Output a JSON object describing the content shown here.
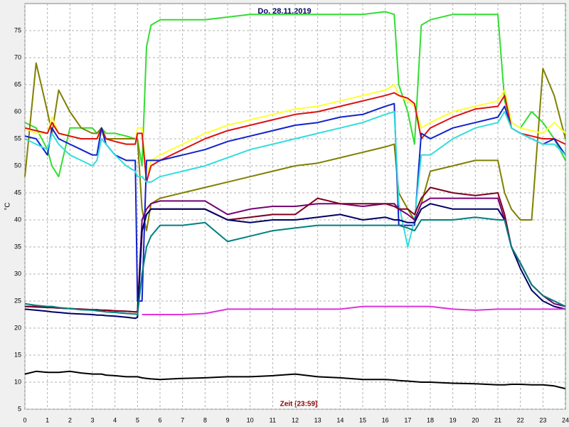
{
  "chart_data": {
    "type": "line",
    "title": "Do, 28.11.2019",
    "x_label": "Zeit [23:59]",
    "y_label": "°C",
    "x": [
      0,
      0.5,
      1,
      1.2,
      1.5,
      2,
      2.5,
      3,
      3.2,
      3.4,
      3.6,
      4,
      4.5,
      4.9,
      5.0,
      5.2,
      5.4,
      5.6,
      6,
      7,
      8,
      9,
      10,
      11,
      12,
      13,
      14,
      15,
      16,
      16.4,
      16.6,
      17,
      17.3,
      17.6,
      18,
      19,
      20,
      21,
      21.3,
      21.6,
      22,
      22.5,
      23,
      23.5,
      24
    ],
    "xlim": [
      0,
      24
    ],
    "ylim": [
      5,
      80
    ],
    "xticks": [
      0,
      1,
      2,
      3,
      4,
      5,
      6,
      7,
      8,
      9,
      10,
      11,
      12,
      13,
      14,
      15,
      16,
      17,
      18,
      19,
      20,
      21,
      22,
      23,
      24
    ],
    "yticks": [
      5,
      10,
      15,
      20,
      25,
      30,
      35,
      40,
      45,
      50,
      55,
      60,
      65,
      70,
      75
    ],
    "grid": true,
    "series": [
      {
        "color": "#33dd33",
        "values": [
          58,
          57,
          53,
          50,
          48,
          57,
          57,
          57,
          56,
          57,
          56,
          56,
          55.5,
          55,
          55,
          50,
          72,
          76,
          77,
          77,
          77,
          77.5,
          78,
          78,
          78,
          78,
          78,
          78,
          78.5,
          78,
          65,
          60,
          54,
          76,
          77,
          78,
          78,
          78,
          62,
          58,
          57,
          60,
          58,
          55,
          51
        ]
      },
      {
        "color": "#808000",
        "values": [
          48,
          69,
          60,
          56,
          64,
          60,
          57,
          56,
          56,
          57,
          55,
          55,
          55,
          55,
          55,
          42,
          38,
          43,
          44,
          45,
          46,
          47,
          48,
          49,
          50,
          50.5,
          51.5,
          52.5,
          53.5,
          54,
          45,
          42,
          40,
          43,
          49,
          50,
          51,
          51,
          45,
          42,
          40,
          40,
          68,
          63,
          55
        ]
      },
      {
        "color": "#ffff33",
        "values": [
          57,
          56,
          56,
          59,
          56,
          55.5,
          55,
          55,
          55,
          56,
          55,
          54.5,
          54,
          54,
          57,
          57,
          48,
          51,
          52,
          54,
          56,
          57.5,
          58.5,
          59.5,
          60.5,
          61,
          62,
          63,
          64,
          65,
          63,
          62,
          61,
          57,
          58,
          60,
          61,
          62,
          64,
          58,
          57,
          56.5,
          56,
          58,
          56
        ]
      },
      {
        "color": "#dd1111",
        "values": [
          57,
          56.5,
          56,
          58,
          56,
          55.5,
          55,
          55,
          55,
          57,
          55,
          54.5,
          54,
          54,
          56,
          56,
          47,
          50,
          51,
          53,
          55,
          56.5,
          57.5,
          58.5,
          59.5,
          60,
          61,
          62,
          63,
          63.5,
          63,
          62.5,
          61.5,
          55,
          57,
          59,
          60.5,
          61,
          63,
          57,
          56,
          55.5,
          55,
          55,
          54
        ]
      },
      {
        "color": "#1122cc",
        "values": [
          55.5,
          55,
          52,
          57,
          55,
          54,
          53,
          52,
          52,
          57,
          54,
          52,
          51,
          51,
          25,
          25,
          51,
          51,
          51,
          52,
          53,
          54.5,
          55.5,
          56.5,
          57.5,
          58,
          59,
          59.5,
          61,
          61.5,
          39,
          39,
          39,
          56,
          55,
          57,
          58,
          59,
          61,
          57,
          56,
          55,
          54,
          55,
          52
        ]
      },
      {
        "color": "#33dddd",
        "values": [
          55,
          54,
          53,
          56,
          54,
          52,
          51,
          50,
          51,
          55,
          54,
          52,
          50,
          49,
          48,
          48,
          47,
          47,
          48,
          49,
          50,
          51.5,
          53,
          54,
          55,
          56,
          57,
          58,
          59.5,
          60,
          43,
          35,
          40,
          52,
          52,
          55,
          57,
          58,
          60,
          57,
          56,
          55,
          54,
          54,
          52
        ]
      },
      {
        "color": "#770077",
        "values": [
          24,
          24,
          23.8,
          23.8,
          23.7,
          23.6,
          23.5,
          23.4,
          23.4,
          23.3,
          23.3,
          23.2,
          23.1,
          23,
          23,
          40,
          42,
          43,
          43.5,
          43.5,
          43.5,
          41,
          42,
          42.5,
          42.5,
          43,
          43,
          42.5,
          43,
          43,
          42,
          41,
          40,
          43,
          44,
          44,
          44,
          44,
          40,
          35,
          32,
          28,
          26,
          24.5,
          24
        ]
      },
      {
        "color": "#800020",
        "values": [
          24,
          23.9,
          23.8,
          23.8,
          23.7,
          23.6,
          23.5,
          23.4,
          23.4,
          23.3,
          23.3,
          23.2,
          23.1,
          23,
          23,
          38,
          41,
          42,
          42,
          42,
          42,
          40,
          40.5,
          41,
          41,
          44,
          43,
          43,
          43,
          42.5,
          42,
          42,
          41,
          44,
          46,
          45,
          44.5,
          45,
          41,
          35,
          32,
          28,
          26,
          25,
          24
        ]
      },
      {
        "color": "#000066",
        "values": [
          23.5,
          23.3,
          23.1,
          23,
          22.9,
          22.7,
          22.6,
          22.5,
          22.4,
          22.4,
          22.3,
          22.2,
          22,
          21.8,
          22,
          38,
          41,
          42,
          42,
          42,
          42,
          40,
          39.5,
          40,
          40,
          40.5,
          41,
          40,
          40.5,
          40,
          40,
          39.5,
          39.5,
          42,
          43,
          42,
          42,
          42,
          40,
          35,
          31,
          27,
          25,
          24,
          23.5
        ]
      },
      {
        "color": "#008080",
        "values": [
          24.5,
          24.2,
          24,
          24,
          23.8,
          23.6,
          23.4,
          23.3,
          23.2,
          23.1,
          23,
          22.9,
          22.7,
          22.6,
          22.5,
          30,
          35,
          37,
          39,
          39,
          39.5,
          36,
          37,
          38,
          38.5,
          39,
          39,
          39,
          39,
          39,
          39,
          38.5,
          38,
          40,
          40,
          40,
          40.5,
          40,
          40,
          35,
          32,
          28,
          26,
          25,
          24
        ]
      },
      {
        "color": "#dd33dd",
        "values": [
          null,
          null,
          null,
          null,
          null,
          null,
          null,
          null,
          null,
          null,
          null,
          null,
          null,
          null,
          null,
          22.5,
          22.5,
          22.5,
          22.5,
          22.5,
          22.7,
          23.5,
          23.5,
          23.5,
          23.5,
          23.5,
          23.5,
          24,
          24,
          24,
          24,
          24,
          24,
          24,
          24,
          23.5,
          23.3,
          23.5,
          23.5,
          23.5,
          23.5,
          23.5,
          23.5,
          23.5,
          23.5
        ]
      },
      {
        "color": "#000000",
        "values": [
          11.5,
          12,
          11.8,
          11.8,
          11.8,
          12,
          11.7,
          11.5,
          11.5,
          11.5,
          11.3,
          11.2,
          11,
          11,
          11,
          10.8,
          10.7,
          10.6,
          10.5,
          10.7,
          10.8,
          11,
          11,
          11.2,
          11.5,
          11,
          10.8,
          10.5,
          10.5,
          10.4,
          10.3,
          10.2,
          10.1,
          10,
          10,
          9.8,
          9.7,
          9.5,
          9.5,
          9.6,
          9.6,
          9.5,
          9.5,
          9.3,
          8.8
        ]
      }
    ]
  }
}
